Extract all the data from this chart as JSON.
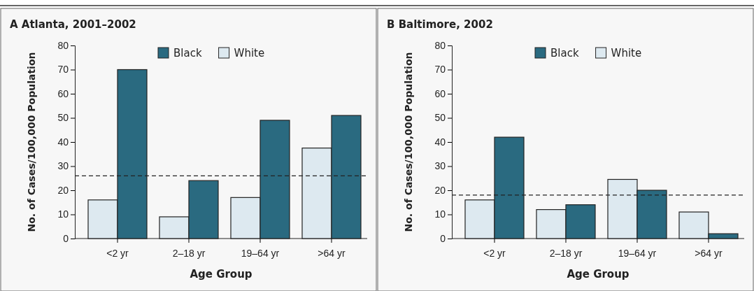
{
  "chart_data": [
    {
      "type": "bar",
      "title": "A  Atlanta, 2001–2002",
      "xlabel": "Age Group",
      "ylabel": "No. of Cases/100,000 Population",
      "categories": [
        "<2 yr",
        "2–18 yr",
        "19–64 yr",
        ">64 yr"
      ],
      "series": [
        {
          "name": "White",
          "color": "#dde9f0",
          "values": [
            16,
            9,
            17,
            37.5
          ]
        },
        {
          "name": "Black",
          "color": "#2a6a80",
          "values": [
            70,
            24,
            49,
            51
          ]
        }
      ],
      "ylim": [
        0,
        80
      ],
      "yticks": [
        0,
        10,
        20,
        30,
        40,
        50,
        60,
        70,
        80
      ],
      "grid": false,
      "legend": "top",
      "ref_lines": [
        {
          "axis": "y",
          "value": 26,
          "line_style": "dashed",
          "color": "#222222"
        }
      ]
    },
    {
      "type": "bar",
      "title": "B  Baltimore, 2002",
      "xlabel": "Age Group",
      "ylabel": "No. of Cases/100,000 Population",
      "categories": [
        "<2 yr",
        "2–18 yr",
        "19–64 yr",
        ">64 yr"
      ],
      "series": [
        {
          "name": "White",
          "color": "#dde9f0",
          "values": [
            16,
            12,
            24.5,
            11
          ]
        },
        {
          "name": "Black",
          "color": "#2a6a80",
          "values": [
            42,
            14,
            20,
            2
          ]
        }
      ],
      "ylim": [
        0,
        80
      ],
      "yticks": [
        0,
        10,
        20,
        30,
        40,
        50,
        60,
        70,
        80
      ],
      "grid": false,
      "legend": "top",
      "ref_lines": [
        {
          "axis": "y",
          "value": 18,
          "line_style": "dashed",
          "color": "#222222"
        }
      ]
    }
  ]
}
